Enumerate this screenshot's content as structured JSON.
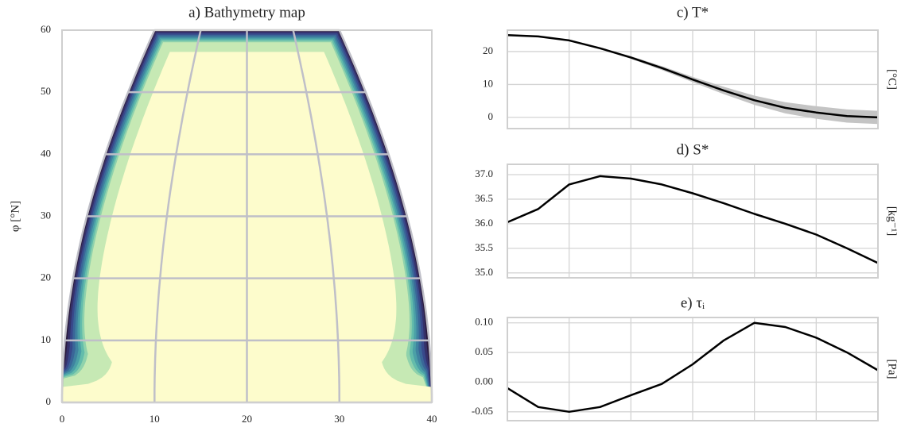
{
  "chart_data": [
    {
      "type": "contour",
      "title": "a) Bathymetry map",
      "ylabel": "φ [°N]",
      "xlim": [
        0,
        40
      ],
      "ylim": [
        0,
        60
      ],
      "xticks": [
        0,
        10,
        20,
        30,
        40
      ],
      "yticks": [
        0,
        10,
        20,
        30,
        40,
        50,
        60
      ],
      "colors": [
        "#2b1c3e",
        "#35316a",
        "#38498b",
        "#3a6698",
        "#3f83a0",
        "#4ba0a7",
        "#63bcab",
        "#8fd2ac",
        "#c6e9b4",
        "#fdfccc"
      ],
      "grid": true
    },
    {
      "type": "line",
      "title": "c) T*",
      "ylabel": "[°C]",
      "color": "#000000",
      "band_color": "#c4c4c4",
      "x": [
        0,
        5,
        10,
        15,
        20,
        25,
        30,
        35,
        40,
        45,
        50,
        55,
        60
      ],
      "values": [
        25.0,
        24.6,
        23.4,
        21.0,
        18.2,
        15.0,
        11.5,
        8.2,
        5.2,
        2.9,
        1.5,
        0.4,
        0.0
      ],
      "band": {
        "lower": [
          25.0,
          24.6,
          23.3,
          20.8,
          17.8,
          14.4,
          10.7,
          7.1,
          3.8,
          1.2,
          -0.4,
          -1.6,
          -2.0
        ],
        "upper": [
          25.0,
          24.6,
          23.5,
          21.2,
          18.6,
          15.6,
          12.3,
          9.3,
          6.6,
          4.6,
          3.4,
          2.4,
          2.0
        ]
      },
      "xlim": [
        0,
        60
      ],
      "xticks": [
        10,
        20,
        30,
        40,
        50
      ],
      "ylim": [
        -3.4,
        26.5
      ],
      "yticks": [
        0,
        10,
        20
      ],
      "grid": true
    },
    {
      "type": "line",
      "title": "d) S*",
      "ylabel": "[kg⁻¹]",
      "color": "#000000",
      "x": [
        0,
        5,
        10,
        15,
        20,
        25,
        30,
        35,
        40,
        45,
        50,
        55,
        60
      ],
      "values": [
        36.03,
        36.3,
        36.8,
        36.97,
        36.92,
        36.8,
        36.62,
        36.42,
        36.2,
        36.0,
        35.78,
        35.5,
        35.2
      ],
      "xlim": [
        0,
        60
      ],
      "xticks": [
        10,
        20,
        30,
        40,
        50
      ],
      "ylim": [
        34.9,
        37.21
      ],
      "yticks": [
        {
          "value": 35,
          "label": "35.0"
        },
        {
          "value": 35.5,
          "label": "35.5"
        },
        {
          "value": 36,
          "label": "36.0"
        },
        {
          "value": 36.5,
          "label": "36.5"
        },
        {
          "value": 37,
          "label": "37.0"
        }
      ],
      "grid": true
    },
    {
      "type": "line",
      "title": "e) τᵢ",
      "ylabel": "[Pa]",
      "color": "#000000",
      "x": [
        0,
        5,
        10,
        15,
        20,
        25,
        30,
        35,
        40,
        45,
        50,
        55,
        60
      ],
      "values": [
        -0.01,
        -0.042,
        -0.05,
        -0.042,
        -0.022,
        -0.003,
        0.03,
        0.07,
        0.1,
        0.093,
        0.075,
        0.05,
        0.02
      ],
      "xlim": [
        0,
        60
      ],
      "xticks": [
        10,
        20,
        30,
        40,
        50
      ],
      "ylim": [
        -0.065,
        0.109
      ],
      "yticks": [
        {
          "value": -0.05,
          "label": "-0.05"
        },
        {
          "value": 0,
          "label": "0.00"
        },
        {
          "value": 0.05,
          "label": "0.05"
        },
        {
          "value": 0.1,
          "label": "0.10"
        }
      ],
      "grid": true
    }
  ]
}
